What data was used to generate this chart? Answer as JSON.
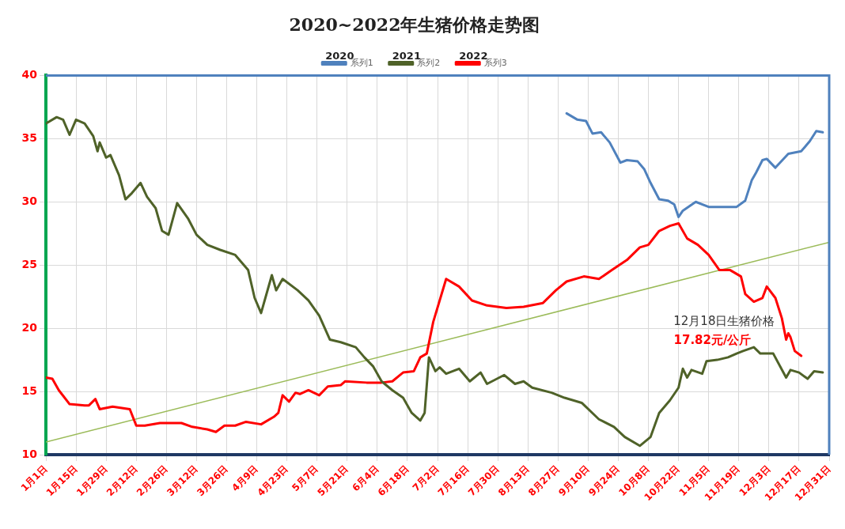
{
  "chart_data": {
    "type": "line",
    "title": "2020~2022年生猪价格走势图",
    "xlim": [
      "--01-01",
      "--12-31"
    ],
    "xticks": [
      {
        "value": "--01-01",
        "label": "1月1日"
      },
      {
        "value": "--01-15",
        "label": "1月15日"
      },
      {
        "value": "--01-29",
        "label": "1月29日"
      },
      {
        "value": "--02-12",
        "label": "2月12日"
      },
      {
        "value": "--02-26",
        "label": "2月26日"
      },
      {
        "value": "--03-12",
        "label": "3月12日"
      },
      {
        "value": "--03-26",
        "label": "3月26日"
      },
      {
        "value": "--04-09",
        "label": "4月9日"
      },
      {
        "value": "--04-23",
        "label": "4月23日"
      },
      {
        "value": "--05-07",
        "label": "5月7日"
      },
      {
        "value": "--05-21",
        "label": "5月21日"
      },
      {
        "value": "--06-04",
        "label": "6月4日"
      },
      {
        "value": "--06-18",
        "label": "6月18日"
      },
      {
        "value": "--07-02",
        "label": "7月2日"
      },
      {
        "value": "--07-16",
        "label": "7月16日"
      },
      {
        "value": "--07-30",
        "label": "7月30日"
      },
      {
        "value": "--08-13",
        "label": "8月13日"
      },
      {
        "value": "--08-27",
        "label": "8月27日"
      },
      {
        "value": "--09-10",
        "label": "9月10日"
      },
      {
        "value": "--09-24",
        "label": "9月24日"
      },
      {
        "value": "--10-08",
        "label": "10月8日"
      },
      {
        "value": "--10-22",
        "label": "10月22日"
      },
      {
        "value": "--11-05",
        "label": "11月5日"
      },
      {
        "value": "--11-19",
        "label": "11月19日"
      },
      {
        "value": "--12-03",
        "label": "12月3日"
      },
      {
        "value": "--12-17",
        "label": "12月17日"
      },
      {
        "value": "--12-31",
        "label": "12月31日"
      }
    ],
    "ylim": [
      10,
      40
    ],
    "yticks": [
      10,
      15,
      20,
      25,
      30,
      35,
      40
    ],
    "grid": true,
    "legend": "top",
    "marker": "none",
    "line_style": "solid",
    "series": [
      {
        "name": "系列1",
        "color": "#4f81bd",
        "x": [
          "--08-31",
          "--09-05",
          "--09-09",
          "--09-12",
          "--09-16",
          "--09-20",
          "--09-25",
          "--09-28",
          "--10-03",
          "--10-06",
          "--10-09",
          "--10-13",
          "--10-17",
          "--10-20",
          "--10-22",
          "--10-24",
          "--10-30",
          "--11-05",
          "--11-11",
          "--11-18",
          "--11-22",
          "--11-25",
          "--11-27",
          "--11-30",
          "--12-02",
          "--12-06",
          "--12-12",
          "--12-18",
          "--12-22",
          "--12-25",
          "--12-28"
        ],
        "values": [
          37.0,
          36.5,
          36.4,
          35.4,
          35.5,
          34.7,
          33.1,
          33.3,
          33.2,
          32.6,
          31.5,
          30.2,
          30.1,
          29.8,
          28.8,
          29.3,
          30.0,
          29.6,
          29.6,
          29.6,
          30.1,
          31.7,
          32.3,
          33.3,
          33.4,
          32.7,
          33.8,
          34.0,
          34.8,
          35.6,
          35.5
        ]
      },
      {
        "name": "系列2",
        "color": "#4f6228",
        "x": [
          "--01-01",
          "--01-06",
          "--01-09",
          "--01-12",
          "--01-15",
          "--01-19",
          "--01-23",
          "--01-25",
          "--01-26",
          "--01-29",
          "--01-31",
          "--02-04",
          "--02-07",
          "--02-10",
          "--02-14",
          "--02-17",
          "--02-21",
          "--02-24",
          "--02-27",
          "--03-03",
          "--03-08",
          "--03-12",
          "--03-17",
          "--03-23",
          "--03-30",
          "--04-05",
          "--04-08",
          "--04-11",
          "--04-16",
          "--04-18",
          "--04-21",
          "--04-28",
          "--05-03",
          "--05-08",
          "--05-13",
          "--05-18",
          "--05-25",
          "--05-29",
          "--06-02",
          "--06-06",
          "--06-11",
          "--06-16",
          "--06-20",
          "--06-24",
          "--06-26",
          "--06-28",
          "--07-01",
          "--07-03",
          "--07-06",
          "--07-12",
          "--07-17",
          "--07-22",
          "--07-25",
          "--08-02",
          "--08-07",
          "--08-11",
          "--08-15",
          "--08-24",
          "--08-30",
          "--09-07",
          "--09-15",
          "--09-22",
          "--09-27",
          "--10-04",
          "--10-09",
          "--10-13",
          "--10-18",
          "--10-22",
          "--10-24",
          "--10-26",
          "--10-28",
          "--11-02",
          "--11-04",
          "--11-09",
          "--11-14",
          "--11-18",
          "--11-21",
          "--11-26",
          "--11-29",
          "--12-05",
          "--12-11",
          "--12-13",
          "--12-17",
          "--12-21",
          "--12-24",
          "--12-28"
        ],
        "values": [
          36.2,
          36.7,
          36.5,
          35.3,
          36.5,
          36.2,
          35.2,
          34.0,
          34.7,
          33.5,
          33.7,
          32.1,
          30.2,
          30.7,
          31.5,
          30.4,
          29.5,
          27.7,
          27.4,
          29.9,
          28.7,
          27.4,
          26.6,
          26.2,
          25.8,
          24.6,
          22.4,
          21.2,
          24.2,
          23.0,
          23.9,
          23.0,
          22.2,
          21.0,
          19.1,
          18.9,
          18.5,
          17.7,
          17.0,
          15.8,
          15.1,
          14.5,
          13.3,
          12.7,
          13.3,
          17.7,
          16.6,
          16.9,
          16.4,
          16.8,
          15.8,
          16.5,
          15.6,
          16.3,
          15.6,
          15.8,
          15.3,
          14.9,
          14.5,
          14.1,
          12.8,
          12.2,
          11.4,
          10.7,
          11.4,
          13.3,
          14.3,
          15.3,
          16.8,
          16.1,
          16.7,
          16.4,
          17.4,
          17.5,
          17.7,
          18.0,
          18.2,
          18.5,
          18.0,
          18.0,
          16.1,
          16.7,
          16.5,
          16.0,
          16.6,
          16.5
        ]
      },
      {
        "name": "系列3",
        "color": "#ff0000",
        "x": [
          "--01-01",
          "--01-04",
          "--01-07",
          "--01-12",
          "--01-19",
          "--01-21",
          "--01-24",
          "--01-26",
          "--02-01",
          "--02-09",
          "--02-12",
          "--02-16",
          "--02-23",
          "--03-05",
          "--03-10",
          "--03-17",
          "--03-21",
          "--03-25",
          "--03-30",
          "--04-04",
          "--04-11",
          "--04-17",
          "--04-19",
          "--04-21",
          "--04-24",
          "--04-27",
          "--04-29",
          "--05-03",
          "--05-08",
          "--05-12",
          "--05-18",
          "--05-20",
          "--05-30",
          "--06-06",
          "--06-11",
          "--06-16",
          "--06-21",
          "--06-24",
          "--06-27",
          "--06-30",
          "--07-06",
          "--07-12",
          "--07-18",
          "--07-25",
          "--08-03",
          "--08-11",
          "--08-20",
          "--08-26",
          "--08-31",
          "--09-08",
          "--09-15",
          "--09-21",
          "--09-28",
          "--10-04",
          "--10-08",
          "--10-13",
          "--10-18",
          "--10-22",
          "--10-26",
          "--10-31",
          "--11-05",
          "--11-10",
          "--11-15",
          "--11-20",
          "--11-22",
          "--11-26",
          "--11-30",
          "--12-02",
          "--12-06",
          "--12-09",
          "--12-11",
          "--12-12",
          "--12-13",
          "--12-15",
          "--12-18"
        ],
        "values": [
          16.1,
          16.0,
          15.1,
          14.0,
          13.9,
          13.9,
          14.4,
          13.6,
          13.8,
          13.6,
          12.3,
          12.3,
          12.5,
          12.5,
          12.2,
          12.0,
          11.8,
          12.3,
          12.3,
          12.6,
          12.4,
          13.0,
          13.3,
          14.7,
          14.2,
          14.9,
          14.8,
          15.1,
          14.7,
          15.4,
          15.5,
          15.8,
          15.7,
          15.7,
          15.8,
          16.5,
          16.6,
          17.7,
          18.0,
          20.5,
          23.9,
          23.3,
          22.2,
          21.8,
          21.6,
          21.7,
          22.0,
          23.0,
          23.7,
          24.1,
          23.9,
          24.6,
          25.4,
          26.4,
          26.6,
          27.7,
          28.1,
          28.3,
          27.1,
          26.6,
          25.8,
          24.6,
          24.6,
          24.1,
          22.7,
          22.1,
          22.4,
          23.3,
          22.4,
          20.8,
          19.1,
          19.6,
          19.3,
          18.2,
          17.82
        ]
      },
      {
        "type": "line",
        "color": "#9bbb59",
        "x": [
          "--01-01",
          "--12-31"
        ],
        "values": [
          11.0,
          26.8
        ]
      }
    ],
    "annotations": [
      "2020",
      "2021",
      "2022",
      "12月18日生猪价格",
      "17.82元/公斤"
    ]
  }
}
